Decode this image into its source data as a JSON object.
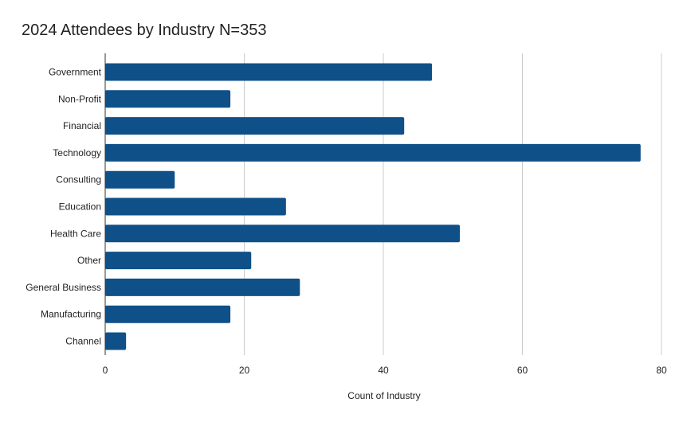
{
  "chart_data": {
    "type": "bar",
    "orientation": "horizontal",
    "title": "2024 Attendees by Industry N=353",
    "xlabel": "Count of Industry",
    "ylabel": "",
    "categories": [
      "Government",
      "Non-Profit",
      "Financial",
      "Technology",
      "Consulting",
      "Education",
      "Health Care",
      "Other",
      "General Business",
      "Manufacturing",
      "Channel"
    ],
    "values": [
      47,
      18,
      43,
      77,
      10,
      26,
      51,
      21,
      28,
      18,
      3
    ],
    "xlim": [
      0,
      80
    ],
    "xticks": [
      "0",
      "20",
      "40",
      "60",
      "80"
    ],
    "grid": "vertical",
    "bar_color": "#0f5088",
    "grid_color": "#cccccc",
    "axis_color": "#333333"
  }
}
